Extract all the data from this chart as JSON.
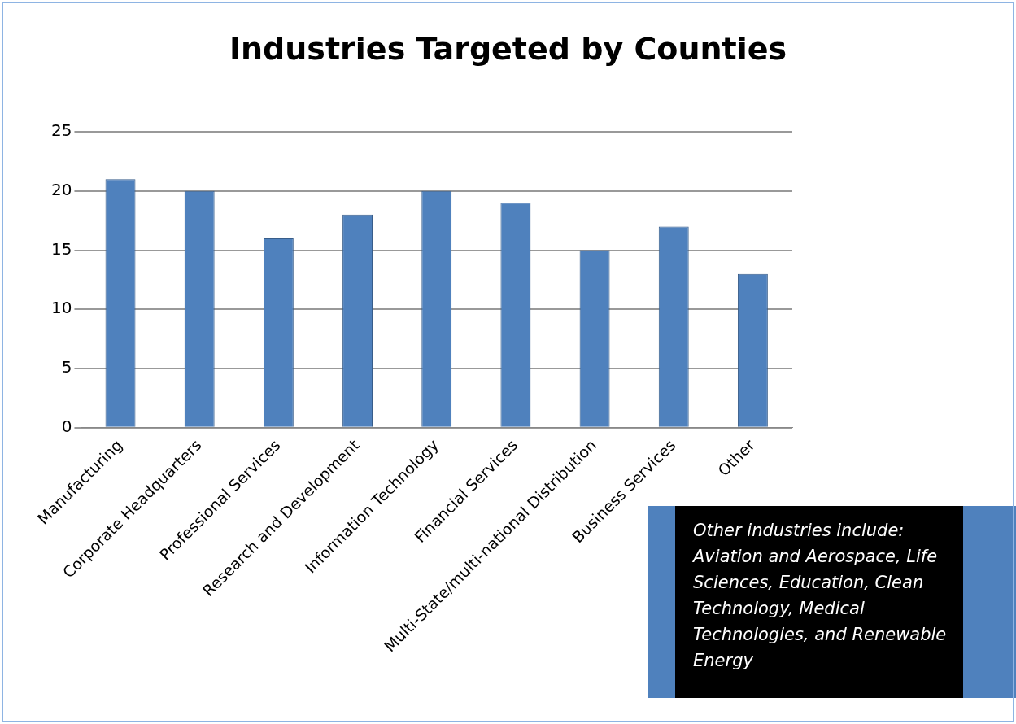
{
  "chart_data": {
    "type": "bar",
    "title": "Industries Targeted by Counties",
    "categories": [
      "Manufacturing",
      "Corporate Headquarters",
      "Professional Services",
      "Research and Development",
      "Information Technology",
      "Financial Services",
      "Multi-State/multi-national Distribution",
      "Business Services",
      "Other"
    ],
    "values": [
      21,
      20,
      16,
      18,
      20,
      19,
      15,
      17,
      13
    ],
    "color": "#4f81bd",
    "ylim": [
      0,
      25
    ],
    "yticks": [
      0,
      5,
      10,
      15,
      20,
      25
    ],
    "grid": "y",
    "legend": false,
    "annotations": [
      "Other industries include: Aviation and Aerospace, Life Sciences, Education, Clean Technology, Medical Technologies, and Renewable Energy"
    ]
  }
}
